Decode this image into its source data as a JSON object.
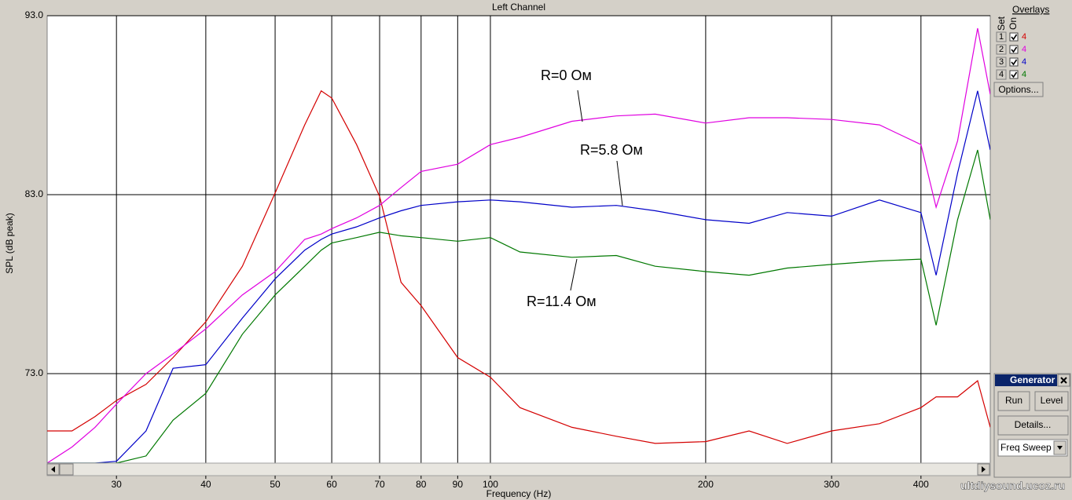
{
  "chart_data": {
    "type": "line",
    "title": "Left Channel",
    "x_label": "Frequency (Hz)",
    "y_label": "SPL (dB peak)",
    "log_x": true,
    "grid": true,
    "x": [
      24,
      26,
      28,
      30,
      33,
      36,
      40,
      45,
      50,
      55,
      58,
      60,
      65,
      70,
      75,
      80,
      90,
      100,
      110,
      130,
      150,
      170,
      200,
      230,
      260,
      300,
      350,
      400,
      420,
      450,
      480,
      500
    ],
    "series": [
      {
        "name": "1",
        "color": "#d40000",
        "values": [
          69.8,
          69.8,
          70.6,
          71.5,
          72.4,
          73.9,
          75.9,
          79.0,
          83.1,
          86.9,
          88.8,
          88.4,
          85.8,
          82.9,
          78.1,
          76.8,
          73.9,
          72.8,
          71.1,
          70.0,
          69.5,
          69.1,
          69.2,
          69.8,
          69.1,
          69.8,
          70.2,
          71.1,
          71.7,
          71.7,
          72.6,
          70.0
        ]
      },
      {
        "name": "2",
        "color": "#e000e0",
        "values": [
          68.0,
          68.9,
          70.0,
          71.3,
          73.0,
          74.1,
          75.5,
          77.4,
          78.7,
          80.5,
          80.8,
          81.1,
          81.7,
          82.4,
          83.4,
          84.3,
          84.7,
          85.8,
          86.2,
          87.1,
          87.4,
          87.5,
          87.0,
          87.3,
          87.3,
          87.2,
          86.9,
          85.8,
          82.3,
          86.0,
          92.3,
          88.6
        ]
      },
      {
        "name": "3",
        "color": "#0000c8",
        "values": [
          68.0,
          68.0,
          68.0,
          68.1,
          69.8,
          73.3,
          73.5,
          76.1,
          78.3,
          79.9,
          80.5,
          80.8,
          81.2,
          81.7,
          82.1,
          82.4,
          82.6,
          82.7,
          82.6,
          82.3,
          82.4,
          82.1,
          81.6,
          81.4,
          82.0,
          81.8,
          82.7,
          82.0,
          78.5,
          84.2,
          88.8,
          85.5
        ]
      },
      {
        "name": "4",
        "color": "#007800",
        "values": [
          68.0,
          68.0,
          68.0,
          68.0,
          68.4,
          70.4,
          71.9,
          75.2,
          77.4,
          79.0,
          79.9,
          80.3,
          80.6,
          80.9,
          80.7,
          80.6,
          80.4,
          80.6,
          79.8,
          79.5,
          79.6,
          79.0,
          78.7,
          78.5,
          78.9,
          79.1,
          79.3,
          79.4,
          75.7,
          81.6,
          85.5,
          81.6
        ]
      }
    ],
    "xlim": [
      24,
      500
    ],
    "xticks": [
      30,
      40,
      50,
      60,
      70,
      80,
      90,
      100,
      200,
      300,
      400
    ],
    "ylim": [
      68,
      93
    ],
    "yticks": [
      {
        "value": 73,
        "label": "73.0"
      },
      {
        "value": 83,
        "label": "83.0"
      },
      {
        "value": 93,
        "label": "93.0"
      }
    ],
    "annotations": [
      "R=0 Ом",
      "R=5.8 Ом",
      "R=11.4 Ом"
    ]
  },
  "ui": {
    "overlays_title": "Overlays",
    "set": "Set",
    "on": "On",
    "overlay_counts": [
      "4",
      "4",
      "4",
      "4"
    ],
    "options": "Options...",
    "generator": "Generator",
    "run": "Run",
    "level": "Level",
    "details": "Details...",
    "sweep": "Freq Sweep",
    "watermark": "ultdiysound.ucoz.ru"
  }
}
